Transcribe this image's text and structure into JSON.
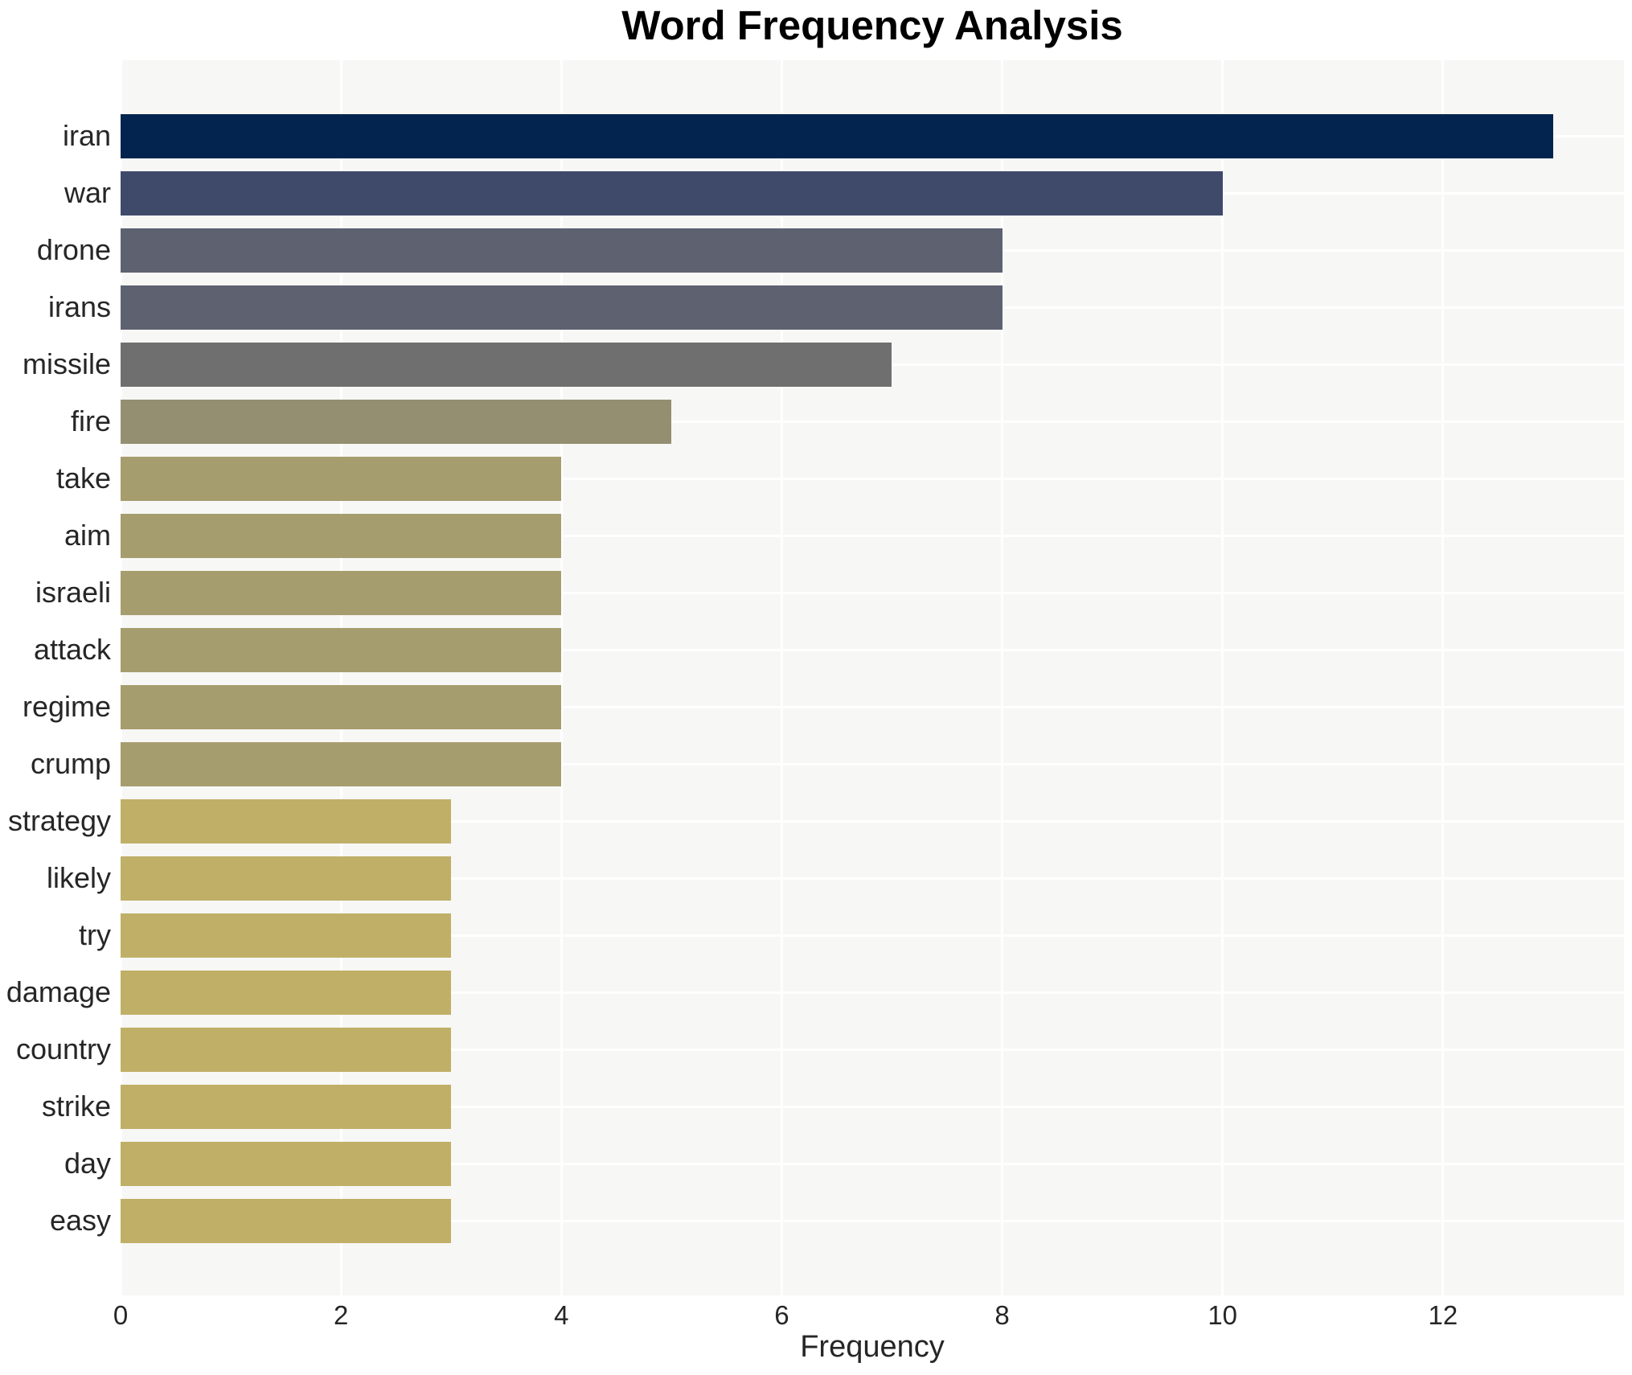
{
  "chart_data": {
    "type": "bar",
    "orientation": "horizontal",
    "title": "Word Frequency Analysis",
    "xlabel": "Frequency",
    "ylabel": "",
    "categories": [
      "iran",
      "war",
      "drone",
      "irans",
      "missile",
      "fire",
      "take",
      "aim",
      "israeli",
      "attack",
      "regime",
      "crump",
      "strategy",
      "likely",
      "try",
      "damage",
      "country",
      "strike",
      "day",
      "easy"
    ],
    "values": [
      13,
      10,
      8,
      8,
      7,
      5,
      4,
      4,
      4,
      4,
      4,
      4,
      3,
      3,
      3,
      3,
      3,
      3,
      3,
      3
    ],
    "bar_colors": [
      "#02244e",
      "#3f4a6b",
      "#5e6170",
      "#5e6170",
      "#6f6f6f",
      "#958f71",
      "#a69d6e",
      "#a69d6e",
      "#a69d6e",
      "#a69d6e",
      "#a69d6e",
      "#a69d6e",
      "#c0af66",
      "#c0af66",
      "#c0af66",
      "#c0af66",
      "#c0af66",
      "#c0af66",
      "#c0af66",
      "#c0af66"
    ],
    "x_ticks": [
      0,
      2,
      4,
      6,
      8,
      10,
      12
    ],
    "xlim": [
      0,
      13.64
    ],
    "grid": true,
    "legend": false,
    "gridline_axes": "both",
    "colors": {
      "plot_background": "#f7f7f6",
      "figure_background": "#ffffff",
      "gridline": "#ffffff",
      "title_text": "#000000",
      "axis_text": "#262626"
    }
  }
}
